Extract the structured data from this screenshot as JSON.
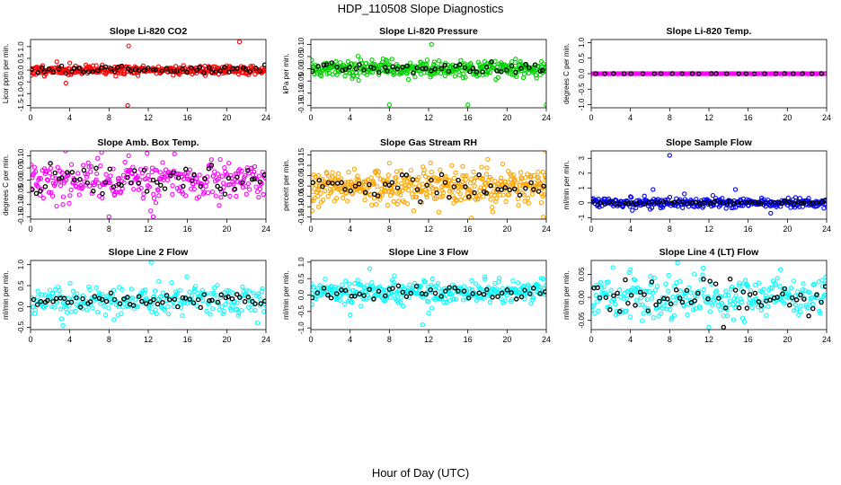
{
  "figure": {
    "title": "HDP_110508  Slope Diagnostics",
    "xlabel": "Hour of Day (UTC)"
  },
  "chart_data": [
    {
      "type": "scatter",
      "title": "Slope Li-820 CO2",
      "ylabel": "Licor ppm per min.",
      "color": "#ff0000",
      "xlim": [
        0,
        24
      ],
      "xticks": [
        0,
        4,
        8,
        12,
        16,
        20,
        24
      ],
      "ylim": [
        -1.6,
        1.3
      ],
      "yticks": [
        -1.5,
        -1.0,
        -0.5,
        0.0,
        0.5,
        1.0
      ],
      "yticklabels": [
        "-1.5",
        "-1.0",
        "-0.5",
        "0.0",
        "0.5",
        "1.0"
      ],
      "center": 0.0,
      "spread": 0.1,
      "black_spread": 0.08,
      "density": 360,
      "black_count": 55,
      "outliers": [
        [
          10.0,
          1.03
        ],
        [
          21.3,
          1.2
        ],
        [
          9.9,
          -1.5
        ],
        [
          3.6,
          -0.55
        ],
        [
          0.1,
          -0.22
        ]
      ],
      "seed": 11
    },
    {
      "type": "scatter",
      "title": "Slope Li-820 Pressure",
      "ylabel": "kPa per min.",
      "color": "#00d000",
      "xlim": [
        0,
        24
      ],
      "xticks": [
        0,
        4,
        8,
        12,
        16,
        20,
        24
      ],
      "ylim": [
        -0.16,
        0.12
      ],
      "yticks": [
        -0.15,
        -0.1,
        -0.05,
        0.0,
        0.05,
        0.1
      ],
      "yticklabels": [
        "-0.15",
        "-0.10",
        "-0.05",
        "0.00",
        "0.05",
        "0.10"
      ],
      "center": 0.0,
      "spread": 0.016,
      "black_spread": 0.012,
      "density": 380,
      "black_count": 50,
      "outliers": [
        [
          8.0,
          -0.148
        ],
        [
          16.0,
          -0.148
        ],
        [
          24.0,
          -0.148
        ],
        [
          12.3,
          0.1
        ],
        [
          4.2,
          -0.04
        ]
      ],
      "seed": 22
    },
    {
      "type": "scatter",
      "title": "Slope Li-820 Temp.",
      "ylabel": "degrees C per min.",
      "color": "#ff00ff",
      "xlim": [
        0,
        24
      ],
      "xticks": [
        0,
        4,
        8,
        12,
        16,
        20,
        24
      ],
      "ylim": [
        -1.1,
        1.1
      ],
      "yticks": [
        -1.0,
        -0.5,
        0.0,
        0.5,
        1.0
      ],
      "yticklabels": [
        "-1.0",
        "-0.5",
        "0.0",
        "0.5",
        "1.0"
      ],
      "center": 0.0,
      "spread": 0.002,
      "black_spread": 0.002,
      "density": 230,
      "black_count": 25,
      "outliers": [],
      "seed": 33
    },
    {
      "type": "scatter",
      "title": "Slope Amb. Box Temp.",
      "ylabel": "degrees C per min.",
      "color": "#ff00ff",
      "xlim": [
        0,
        24
      ],
      "xticks": [
        0,
        4,
        8,
        12,
        16,
        20,
        24
      ],
      "ylim": [
        -0.16,
        0.12
      ],
      "yticks": [
        -0.15,
        -0.1,
        -0.05,
        0.0,
        0.05,
        0.1
      ],
      "yticklabels": [
        "-0.15",
        "-0.10",
        "-0.05",
        "0.00",
        "0.05",
        "0.10"
      ],
      "center": 0.0,
      "spread": 0.042,
      "black_spread": 0.035,
      "density": 300,
      "black_count": 55,
      "outliers": [
        [
          8.0,
          -0.15
        ],
        [
          12.5,
          -0.15
        ],
        [
          10.0,
          0.1
        ],
        [
          3.3,
          -0.1
        ]
      ],
      "seed": 44
    },
    {
      "type": "scatter",
      "title": "Slope Gas Stream RH",
      "ylabel": "percent per min.",
      "color": "#ffa500",
      "xlim": [
        0,
        24
      ],
      "xticks": [
        0,
        4,
        8,
        12,
        16,
        20,
        24
      ],
      "ylim": [
        -0.16,
        0.17
      ],
      "yticks": [
        -0.15,
        -0.1,
        -0.05,
        0.0,
        0.05,
        0.1,
        0.15
      ],
      "yticklabels": [
        "-0.15",
        "-0.10",
        "-0.05",
        "0.00",
        "0.05",
        "0.10",
        "0.15"
      ],
      "center": 0.0,
      "spread": 0.045,
      "black_spread": 0.035,
      "density": 420,
      "black_count": 50,
      "outliers": [
        [
          23.9,
          0.17
        ],
        [
          23.7,
          -0.15
        ],
        [
          0.8,
          -0.1
        ],
        [
          23.5,
          -0.08
        ]
      ],
      "seed": 55
    },
    {
      "type": "scatter",
      "title": "Slope Sample Flow",
      "ylabel": "ml/min per min.",
      "color": "#0000ff",
      "xlim": [
        0,
        24
      ],
      "xticks": [
        0,
        4,
        8,
        12,
        16,
        20,
        24
      ],
      "ylim": [
        -1.1,
        3.5
      ],
      "yticks": [
        -1,
        0,
        1,
        2,
        3
      ],
      "yticklabels": [
        "-1",
        "0",
        "1",
        "2",
        "3"
      ],
      "center": 0.0,
      "spread": 0.16,
      "black_spread": 0.07,
      "density": 330,
      "black_count": 60,
      "outliers": [
        [
          8.0,
          3.2
        ],
        [
          6.3,
          0.9
        ],
        [
          9.5,
          0.6
        ],
        [
          14.7,
          0.9
        ],
        [
          18.3,
          -0.7
        ],
        [
          12.4,
          0.5
        ]
      ],
      "seed": 66
    },
    {
      "type": "scatter",
      "title": "Slope Line 2 Flow",
      "ylabel": "ml/min per min.",
      "color": "#00ffff",
      "xlim": [
        0,
        24
      ],
      "xticks": [
        0,
        4,
        8,
        12,
        16,
        20,
        24
      ],
      "ylim": [
        -0.55,
        1.1
      ],
      "yticks": [
        -0.5,
        0.0,
        0.5,
        1.0
      ],
      "yticklabels": [
        "-0.5",
        "0.0",
        "0.5",
        "1.0"
      ],
      "center": 0.15,
      "spread": 0.2,
      "black_spread": 0.08,
      "density": 260,
      "black_count": 60,
      "outliers": [
        [
          12.3,
          1.05
        ],
        [
          3.3,
          -0.45
        ]
      ],
      "seed": 77
    },
    {
      "type": "scatter",
      "title": "Slope Line 3 Flow",
      "ylabel": "ml/min per min.",
      "color": "#00ffff",
      "xlim": [
        0,
        24
      ],
      "xticks": [
        0,
        4,
        8,
        12,
        16,
        20,
        24
      ],
      "ylim": [
        -1.05,
        1.05
      ],
      "yticks": [
        -1.0,
        -0.5,
        0.0,
        0.5,
        1.0
      ],
      "yticklabels": [
        "-1.0",
        "-0.5",
        "0.0",
        "0.5",
        "1.0"
      ],
      "center": 0.1,
      "spread": 0.17,
      "black_spread": 0.12,
      "density": 330,
      "black_count": 50,
      "outliers": [
        [
          12.0,
          -0.55
        ],
        [
          6.0,
          0.8
        ],
        [
          11.4,
          -0.9
        ],
        [
          4.0,
          -0.6
        ]
      ],
      "seed": 88
    },
    {
      "type": "scatter",
      "title": "Slope Line 4 (LT) Flow",
      "ylabel": "ml/min per min.",
      "color": "#00ffff",
      "xlim": [
        0,
        24
      ],
      "xticks": [
        0,
        4,
        8,
        12,
        16,
        20,
        24
      ],
      "ylim": [
        -0.07,
        0.08
      ],
      "yticks": [
        -0.05,
        0.0,
        0.05
      ],
      "yticklabels": [
        "-0.05",
        "0.00",
        "0.05"
      ],
      "center": 0.0,
      "spread": 0.022,
      "black_spread": 0.02,
      "density": 280,
      "black_count": 60,
      "outliers": [
        [
          4.0,
          0.06
        ],
        [
          12.0,
          -0.065
        ],
        [
          8.8,
          0.075
        ],
        [
          19.3,
          0.06
        ]
      ],
      "seed": 99
    }
  ]
}
